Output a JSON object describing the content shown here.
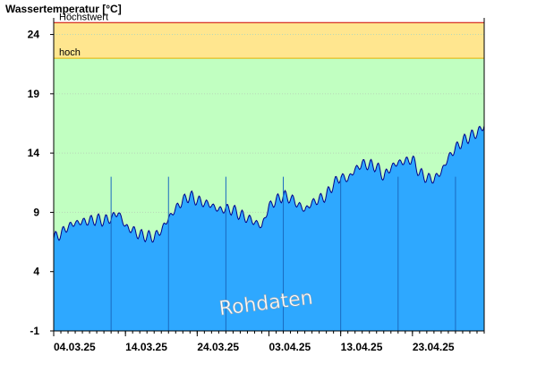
{
  "chart_data": {
    "type": "area",
    "title": "Wassertemperatur [°C]",
    "ylim": [
      -1,
      25.4
    ],
    "y_ticks": [
      -1,
      4,
      9,
      14,
      19,
      24
    ],
    "x_tick_labels": [
      "04.03.25",
      "14.03.25",
      "24.03.25",
      "03.04.25",
      "13.04.25",
      "23.04.25"
    ],
    "x_start_date": "04.03.25",
    "x_end_date": "03.05.25",
    "thresholds": [
      {
        "name": "Höchstwert",
        "value": 25
      },
      {
        "name": "hoch",
        "value": 22
      }
    ],
    "watermark": "Rohdaten",
    "series": [
      {
        "values": [
          [
            "04.03.25",
            6.8
          ],
          [
            "05.03.25",
            7.2
          ],
          [
            "06.03.25",
            7.8
          ],
          [
            "07.03.25",
            8.1
          ],
          [
            "08.03.25",
            8.2
          ],
          [
            "09.03.25",
            8.3
          ],
          [
            "10.03.25",
            8.4
          ],
          [
            "11.03.25",
            8.3
          ],
          [
            "12.03.25",
            8.5
          ],
          [
            "13.03.25",
            9.0
          ],
          [
            "14.03.25",
            7.8
          ],
          [
            "15.03.25",
            7.5
          ],
          [
            "16.03.25",
            7.1
          ],
          [
            "17.03.25",
            7.0
          ],
          [
            "18.03.25",
            6.9
          ],
          [
            "19.03.25",
            7.5
          ],
          [
            "20.03.25",
            8.5
          ],
          [
            "21.03.25",
            9.3
          ],
          [
            "22.03.25",
            10.0
          ],
          [
            "23.03.25",
            10.4
          ],
          [
            "24.03.25",
            10.0
          ],
          [
            "25.03.25",
            9.8
          ],
          [
            "26.03.25",
            9.6
          ],
          [
            "27.03.25",
            9.2
          ],
          [
            "28.03.25",
            9.3
          ],
          [
            "29.03.25",
            9.2
          ],
          [
            "30.03.25",
            8.8
          ],
          [
            "31.03.25",
            8.5
          ],
          [
            "01.04.25",
            8.2
          ],
          [
            "02.04.25",
            7.8
          ],
          [
            "03.04.25",
            9.5
          ],
          [
            "04.04.25",
            10.0
          ],
          [
            "05.04.25",
            10.4
          ],
          [
            "06.04.25",
            10.2
          ],
          [
            "07.04.25",
            9.7
          ],
          [
            "08.04.25",
            9.2
          ],
          [
            "09.04.25",
            9.8
          ],
          [
            "10.04.25",
            10.1
          ],
          [
            "11.04.25",
            10.4
          ],
          [
            "12.04.25",
            11.4
          ],
          [
            "13.04.25",
            12.0
          ],
          [
            "14.04.25",
            11.8
          ],
          [
            "15.04.25",
            12.6
          ],
          [
            "16.04.25",
            13.1
          ],
          [
            "17.04.25",
            13.0
          ],
          [
            "18.04.25",
            12.9
          ],
          [
            "19.04.25",
            12.0
          ],
          [
            "20.04.25",
            12.8
          ],
          [
            "21.04.25",
            13.2
          ],
          [
            "22.04.25",
            13.3
          ],
          [
            "23.04.25",
            13.5
          ],
          [
            "24.04.25",
            12.3
          ],
          [
            "25.04.25",
            11.9
          ],
          [
            "26.04.25",
            11.8
          ],
          [
            "27.04.25",
            12.4
          ],
          [
            "28.04.25",
            13.6
          ],
          [
            "29.04.25",
            14.4
          ],
          [
            "30.04.25",
            15.0
          ],
          [
            "01.05.25",
            15.4
          ],
          [
            "02.05.25",
            15.7
          ],
          [
            "03.05.25",
            16.3
          ]
        ]
      }
    ]
  }
}
